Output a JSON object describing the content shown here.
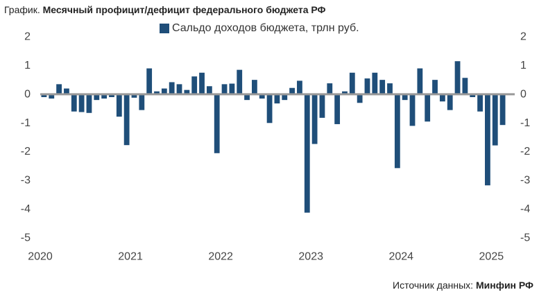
{
  "header": {
    "prefix": "График.",
    "title": "Месячный профицит/дефицит федерального бюджета РФ"
  },
  "footer": {
    "source_label": "Источник данных:",
    "source_name": "Минфин РФ"
  },
  "chart_data": {
    "type": "bar",
    "series": [
      {
        "name": "Сальдо доходов бюджета, трлн руб.",
        "color": "#1f4e79",
        "values": [
          -0.1,
          -0.15,
          0.35,
          0.2,
          -0.6,
          -0.62,
          -0.65,
          -0.2,
          -0.15,
          -0.1,
          -0.78,
          -1.77,
          -0.12,
          -0.55,
          0.9,
          0.1,
          0.2,
          0.42,
          0.35,
          0.15,
          0.62,
          0.75,
          0.28,
          -2.05,
          0.35,
          0.37,
          0.85,
          -0.2,
          0.5,
          -0.15,
          -1.0,
          -0.32,
          -0.2,
          0.22,
          0.47,
          -4.12,
          -1.73,
          -0.82,
          0.38,
          -1.04,
          0.1,
          0.75,
          -0.3,
          0.55,
          0.75,
          0.5,
          0.38,
          -2.57,
          -0.2,
          -1.1,
          0.9,
          -0.95,
          0.5,
          -0.25,
          -0.55,
          1.15,
          0.57,
          -0.1,
          -0.6,
          -3.17,
          -1.78,
          -1.07
        ]
      }
    ],
    "x_start": "2020-01",
    "x_tick_labels": [
      "2020",
      "2021",
      "2022",
      "2023",
      "2024",
      "2025"
    ],
    "y_ticks": [
      2,
      1,
      0,
      -1,
      -2,
      -3,
      -4,
      -5
    ],
    "ylim": [
      -5,
      2
    ],
    "zero_line_color": "#999999",
    "legend_position": "top-center",
    "grid": false
  }
}
